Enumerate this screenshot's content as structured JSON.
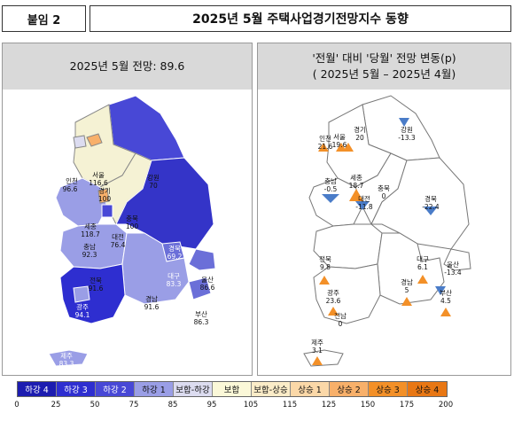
{
  "header": {
    "attachment": "붙임 2",
    "title": "2025년 5월 주택사업경기전망지수 동향"
  },
  "left_panel": {
    "title": "2025년 5월 전망: 89.6",
    "regions": [
      {
        "name": "인천",
        "value": "96.6"
      },
      {
        "name": "서울",
        "value": "116.6"
      },
      {
        "name": "경기",
        "value": "100"
      },
      {
        "name": "강원",
        "value": "70"
      },
      {
        "name": "세종",
        "value": "118.7"
      },
      {
        "name": "충북",
        "value": "100"
      },
      {
        "name": "대전",
        "value": "76.4"
      },
      {
        "name": "충남",
        "value": "92.3"
      },
      {
        "name": "경북",
        "value": "69.2"
      },
      {
        "name": "대구",
        "value": "83.3"
      },
      {
        "name": "전북",
        "value": "91.6"
      },
      {
        "name": "울산",
        "value": "86.6"
      },
      {
        "name": "경남",
        "value": "91.6"
      },
      {
        "name": "부산",
        "value": "86.3"
      },
      {
        "name": "광주",
        "value": "94.1"
      },
      {
        "name": "전남",
        "value": "66.6"
      },
      {
        "name": "제주",
        "value": "83.3"
      }
    ]
  },
  "right_panel": {
    "title_line1": "'전월' 대비 '당월' 전망 변동(p)",
    "title_line2": "( 2025년 5월 –  2025년 4월)",
    "regions": [
      {
        "name": "강원",
        "value": "-13.3"
      },
      {
        "name": "경기",
        "value": "20"
      },
      {
        "name": "서울",
        "value": "19.6"
      },
      {
        "name": "인천",
        "value": "21.6"
      },
      {
        "name": "충남",
        "value": "-0.5"
      },
      {
        "name": "세종",
        "value": "18.7"
      },
      {
        "name": "대전",
        "value": "-11.8"
      },
      {
        "name": "충북",
        "value": "0"
      },
      {
        "name": "경북",
        "value": "-22.4"
      },
      {
        "name": "전북",
        "value": "9.8"
      },
      {
        "name": "대구",
        "value": "6.1"
      },
      {
        "name": "울산",
        "value": "-13.4"
      },
      {
        "name": "경남",
        "value": "5"
      },
      {
        "name": "부산",
        "value": "4.5"
      },
      {
        "name": "광주",
        "value": "23.6"
      },
      {
        "name": "전남",
        "value": "0"
      },
      {
        "name": "제주",
        "value": "3.1"
      }
    ]
  },
  "legend": {
    "items": [
      "하강 4",
      "하강 3",
      "하강 2",
      "하강 1",
      "보합-하강",
      "보합",
      "보합-상승",
      "상승 1",
      "상승 2",
      "상승 3",
      "상승 4"
    ],
    "colors": [
      "#1c1cb0",
      "#2e2ed0",
      "#4848d6",
      "#9a9ee6",
      "#dcdcf0",
      "#fbf8d8",
      "#fbecc8",
      "#fbd8a8",
      "#f8b06a",
      "#f39028",
      "#e87714"
    ],
    "ticks": [
      "0",
      "25",
      "50",
      "75",
      "85",
      "95",
      "105",
      "115",
      "125",
      "150",
      "175",
      "200"
    ]
  }
}
